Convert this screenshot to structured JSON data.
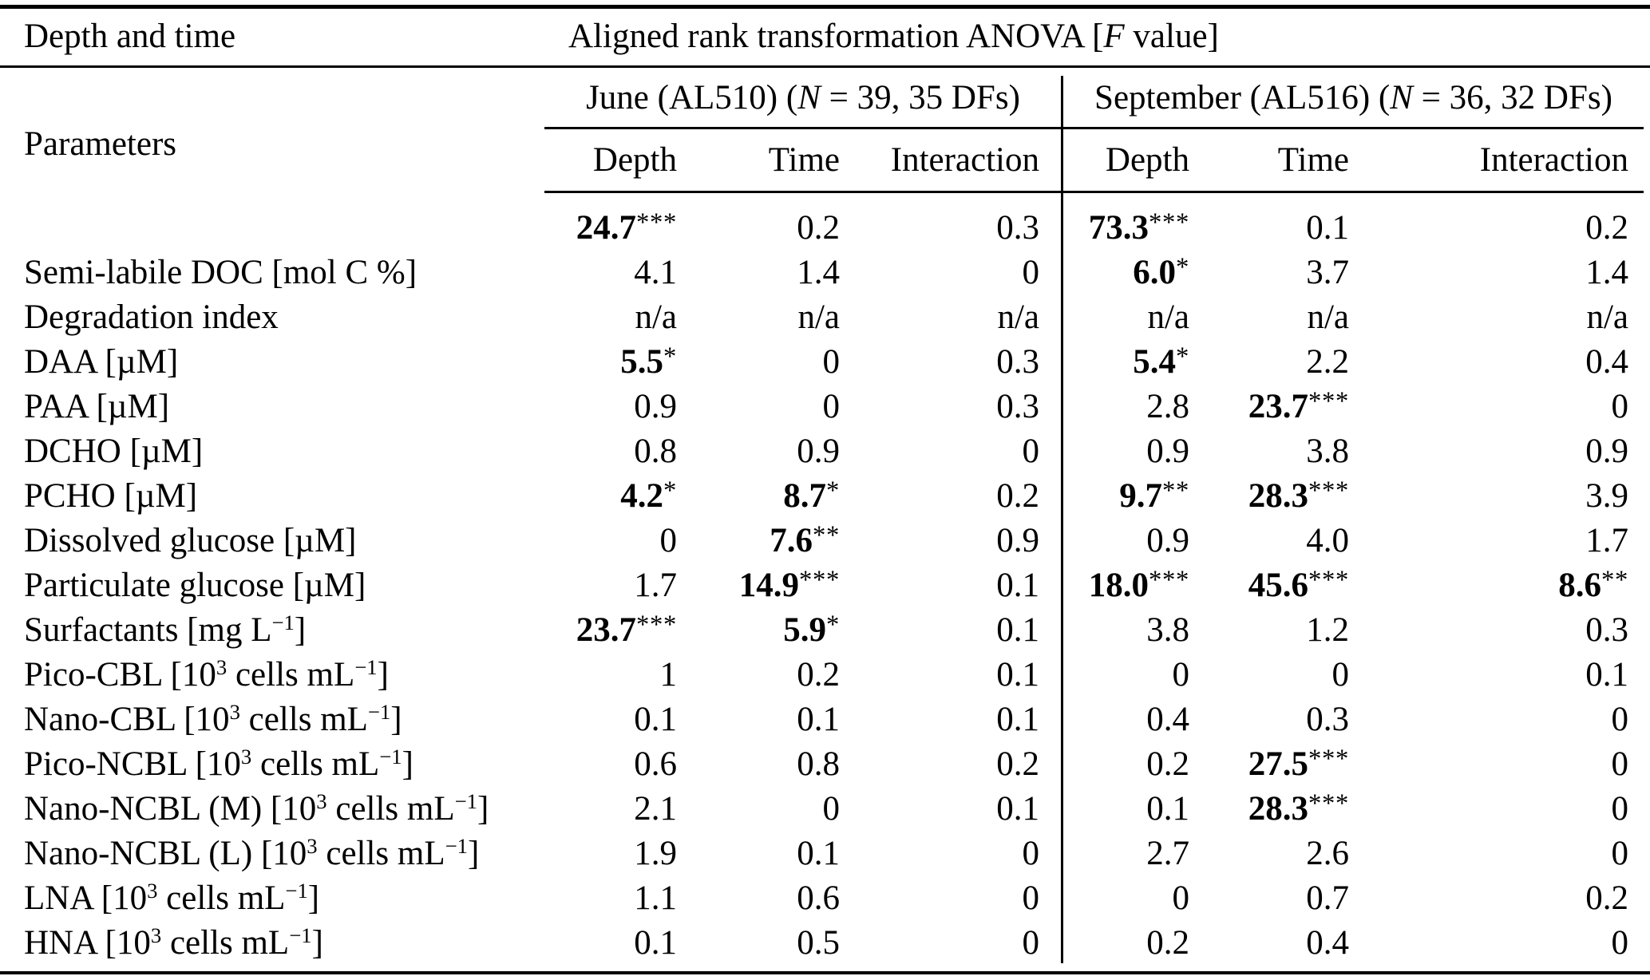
{
  "table": {
    "corner_header": "Depth and time",
    "anova_header": "Aligned rank transformation ANOVA [*F* value]",
    "left_subheader": "Parameters",
    "groups": [
      {
        "label": "June (AL510) (*N* = 39, 35 DFs)",
        "columns": [
          "Depth",
          "Time",
          "Interaction"
        ]
      },
      {
        "label": "September (AL516) (*N* = 36, 32 DFs)",
        "columns": [
          "Depth",
          "Time",
          "Interaction"
        ]
      }
    ],
    "rows": [
      {
        "param": "",
        "june": [
          {
            "v": "24.7",
            "s": "***",
            "b": true
          },
          {
            "v": "0.2"
          },
          {
            "v": "0.3"
          }
        ],
        "september": [
          {
            "v": "73.3",
            "s": "***",
            "b": true
          },
          {
            "v": "0.1"
          },
          {
            "v": "0.2"
          }
        ]
      },
      {
        "param": "Semi-labile DOC [mol C %]",
        "june": [
          {
            "v": "4.1"
          },
          {
            "v": "1.4"
          },
          {
            "v": "0"
          }
        ],
        "september": [
          {
            "v": "6.0",
            "s": "*",
            "b": true
          },
          {
            "v": "3.7"
          },
          {
            "v": "1.4"
          }
        ]
      },
      {
        "param": "Degradation index",
        "june": [
          {
            "v": "n/a"
          },
          {
            "v": "n/a"
          },
          {
            "v": "n/a"
          }
        ],
        "september": [
          {
            "v": "n/a"
          },
          {
            "v": "n/a"
          },
          {
            "v": "n/a"
          }
        ]
      },
      {
        "param": "DAA [µM]",
        "june": [
          {
            "v": "5.5",
            "s": "*",
            "b": true
          },
          {
            "v": "0"
          },
          {
            "v": "0.3"
          }
        ],
        "september": [
          {
            "v": "5.4",
            "s": "*",
            "b": true
          },
          {
            "v": "2.2"
          },
          {
            "v": "0.4"
          }
        ]
      },
      {
        "param": "PAA [µM]",
        "june": [
          {
            "v": "0.9"
          },
          {
            "v": "0"
          },
          {
            "v": "0.3"
          }
        ],
        "september": [
          {
            "v": "2.8"
          },
          {
            "v": "23.7",
            "s": "***",
            "b": true
          },
          {
            "v": "0"
          }
        ]
      },
      {
        "param": "DCHO [µM]",
        "june": [
          {
            "v": "0.8"
          },
          {
            "v": "0.9"
          },
          {
            "v": "0"
          }
        ],
        "september": [
          {
            "v": "0.9"
          },
          {
            "v": "3.8"
          },
          {
            "v": "0.9"
          }
        ]
      },
      {
        "param": "PCHO [µM]",
        "june": [
          {
            "v": "4.2",
            "s": "*",
            "b": true
          },
          {
            "v": "8.7",
            "s": "*",
            "b": true
          },
          {
            "v": "0.2"
          }
        ],
        "september": [
          {
            "v": "9.7",
            "s": "**",
            "b": true
          },
          {
            "v": "28.3",
            "s": "***",
            "b": true
          },
          {
            "v": "3.9"
          }
        ]
      },
      {
        "param": "Dissolved glucose [µM]",
        "june": [
          {
            "v": "0"
          },
          {
            "v": "7.6",
            "s": "**",
            "b": true
          },
          {
            "v": "0.9"
          }
        ],
        "september": [
          {
            "v": "0.9"
          },
          {
            "v": "4.0"
          },
          {
            "v": "1.7"
          }
        ]
      },
      {
        "param": "Particulate glucose [µM]",
        "june": [
          {
            "v": "1.7"
          },
          {
            "v": "14.9",
            "s": "***",
            "b": true
          },
          {
            "v": "0.1"
          }
        ],
        "september": [
          {
            "v": "18.0",
            "s": "***",
            "b": true
          },
          {
            "v": "45.6",
            "s": "***",
            "b": true
          },
          {
            "v": "8.6",
            "s": "**",
            "b": true
          }
        ]
      },
      {
        "param": "Surfactants [mg L^{−1}]",
        "june": [
          {
            "v": "23.7",
            "s": "***",
            "b": true
          },
          {
            "v": "5.9",
            "s": "*",
            "b": true
          },
          {
            "v": "0.1"
          }
        ],
        "september": [
          {
            "v": "3.8"
          },
          {
            "v": "1.2"
          },
          {
            "v": "0.3"
          }
        ]
      },
      {
        "param": "Pico-CBL [10^{3} cells mL^{−1}]",
        "june": [
          {
            "v": "1"
          },
          {
            "v": "0.2"
          },
          {
            "v": "0.1"
          }
        ],
        "september": [
          {
            "v": "0"
          },
          {
            "v": "0"
          },
          {
            "v": "0.1"
          }
        ]
      },
      {
        "param": "Nano-CBL [10^{3} cells mL^{−1}]",
        "june": [
          {
            "v": "0.1"
          },
          {
            "v": "0.1"
          },
          {
            "v": "0.1"
          }
        ],
        "september": [
          {
            "v": "0.4"
          },
          {
            "v": "0.3"
          },
          {
            "v": "0"
          }
        ]
      },
      {
        "param": "Pico-NCBL [10^{3} cells mL^{−1}]",
        "june": [
          {
            "v": "0.6"
          },
          {
            "v": "0.8"
          },
          {
            "v": "0.2"
          }
        ],
        "september": [
          {
            "v": "0.2"
          },
          {
            "v": "27.5",
            "s": "***",
            "b": true
          },
          {
            "v": "0"
          }
        ]
      },
      {
        "param": "Nano-NCBL (M) [10^{3} cells mL^{−1}]",
        "june": [
          {
            "v": "2.1"
          },
          {
            "v": "0"
          },
          {
            "v": "0.1"
          }
        ],
        "september": [
          {
            "v": "0.1"
          },
          {
            "v": "28.3",
            "s": "***",
            "b": true
          },
          {
            "v": "0"
          }
        ]
      },
      {
        "param": "Nano-NCBL (L) [10^{3} cells mL^{−1}]",
        "june": [
          {
            "v": "1.9"
          },
          {
            "v": "0.1"
          },
          {
            "v": "0"
          }
        ],
        "september": [
          {
            "v": "2.7"
          },
          {
            "v": "2.6"
          },
          {
            "v": "0"
          }
        ]
      },
      {
        "param": "LNA [10^{3} cells mL^{−1}]",
        "june": [
          {
            "v": "1.1"
          },
          {
            "v": "0.6"
          },
          {
            "v": "0"
          }
        ],
        "september": [
          {
            "v": "0"
          },
          {
            "v": "0.7"
          },
          {
            "v": "0.2"
          }
        ]
      },
      {
        "param": "HNA [10^{3} cells mL^{−1}]",
        "june": [
          {
            "v": "0.1"
          },
          {
            "v": "0.5"
          },
          {
            "v": "0"
          }
        ],
        "september": [
          {
            "v": "0.2"
          },
          {
            "v": "0.4"
          },
          {
            "v": "0"
          }
        ]
      }
    ]
  }
}
